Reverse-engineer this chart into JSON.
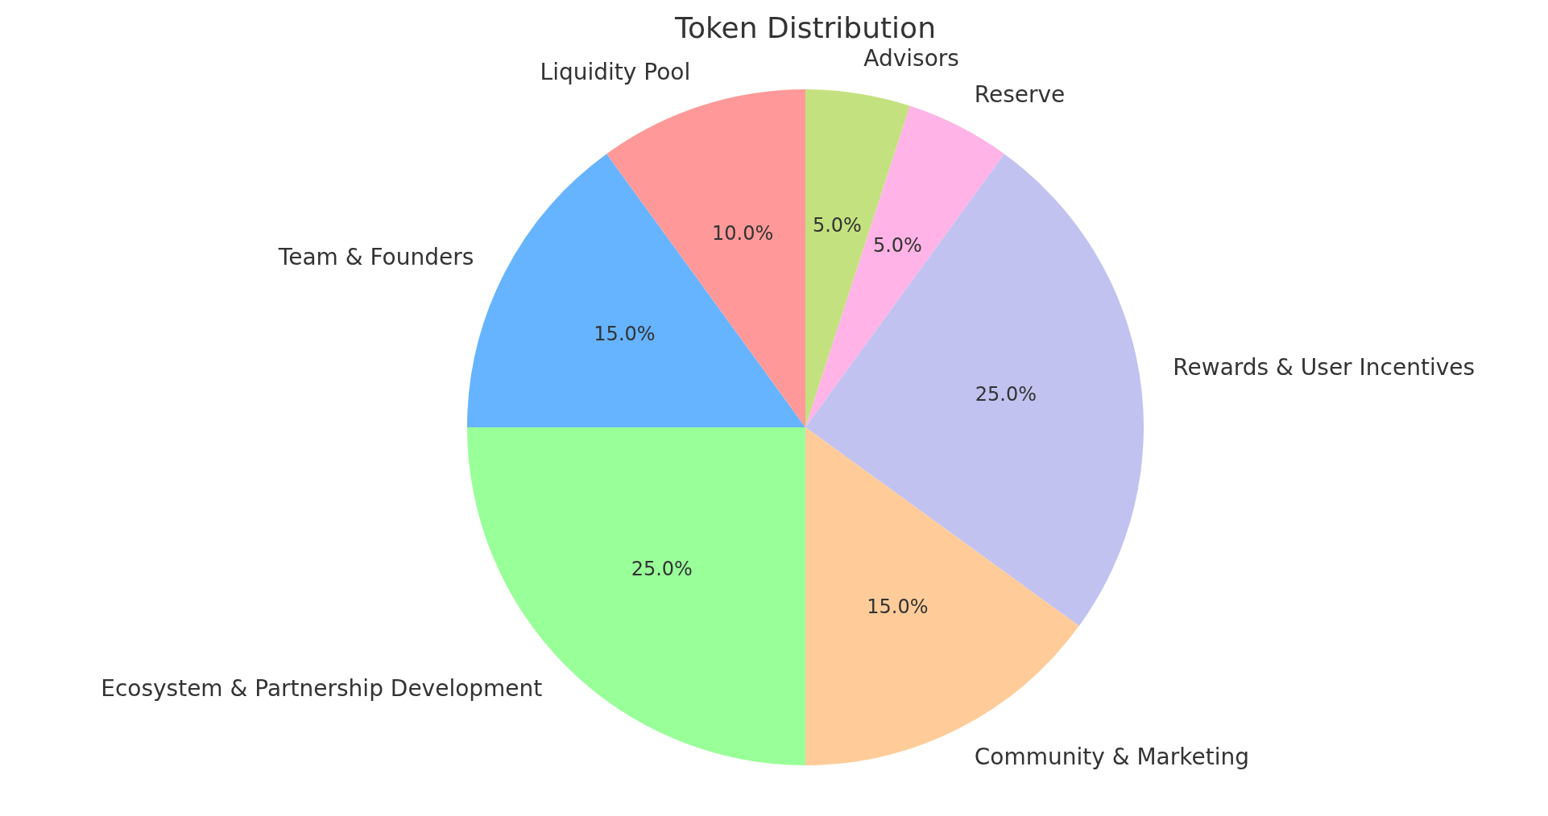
{
  "chart_data": {
    "type": "pie",
    "title": "Token Distribution",
    "categories": [
      "Advisors",
      "Reserve",
      "Rewards & User Incentives",
      "Community & Marketing",
      "Ecosystem & Partnership Development",
      "Team & Founders",
      "Liquidity Pool"
    ],
    "values": [
      5,
      5,
      25,
      15,
      25,
      15,
      10
    ],
    "colors": [
      "#c4e17f",
      "#ffb3e6",
      "#c2c2f0",
      "#ffcc99",
      "#99ff99",
      "#66b3ff",
      "#ff9999"
    ],
    "value_labels": [
      "5.0%",
      "5.0%",
      "25.0%",
      "15.0%",
      "25.0%",
      "15.0%",
      "10.0%"
    ],
    "legend": false
  }
}
